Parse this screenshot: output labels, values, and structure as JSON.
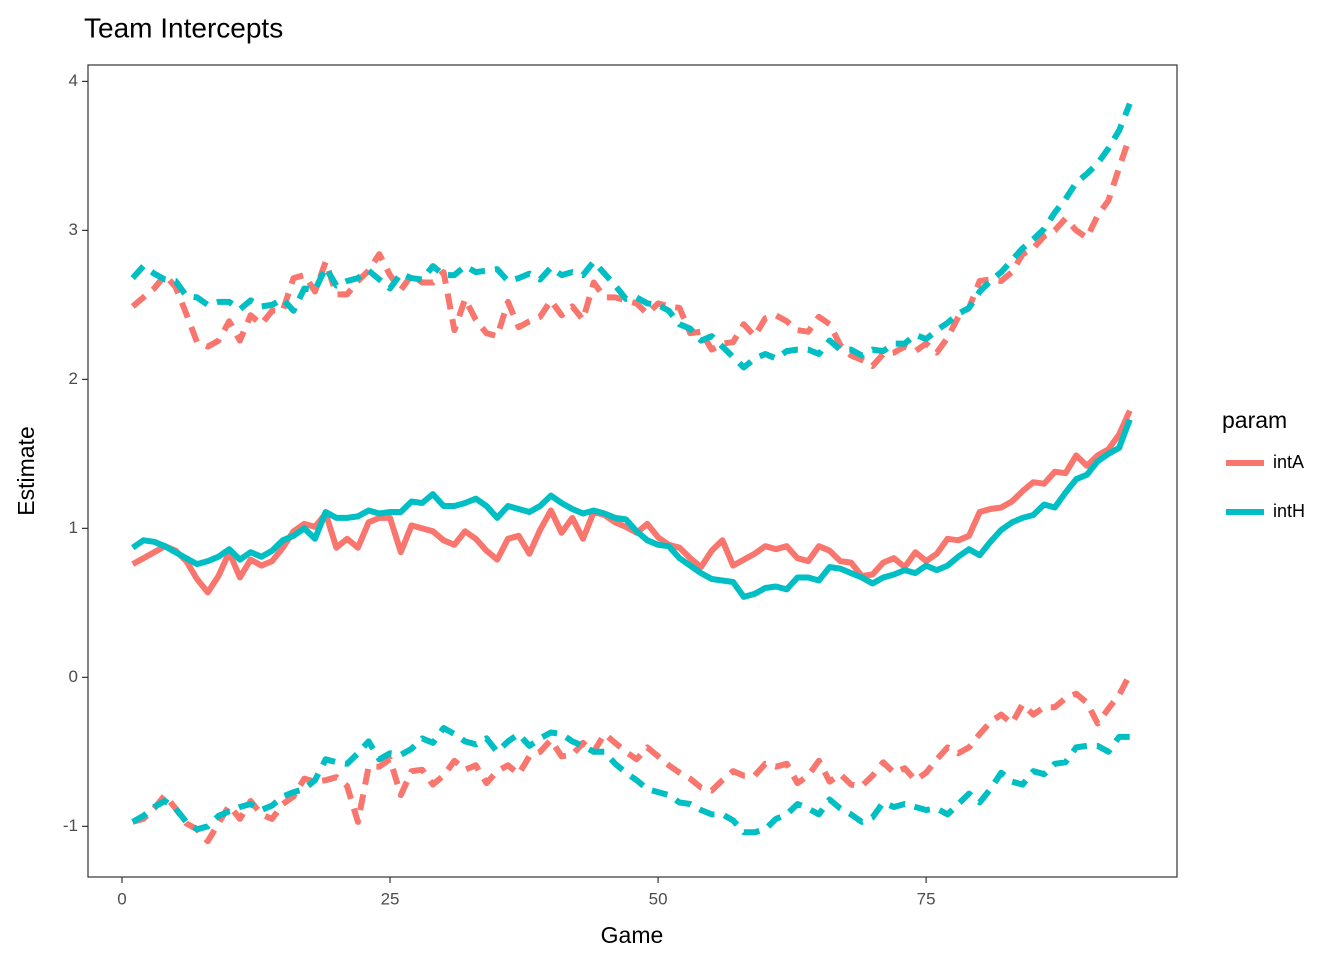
{
  "chart_data": {
    "type": "line",
    "title": "Team Intercepts",
    "x_label": "Game",
    "y_label": "Estimate",
    "legend_title": "param",
    "legend_position": "right",
    "x": [
      1,
      2,
      3,
      4,
      5,
      6,
      7,
      8,
      9,
      10,
      11,
      12,
      13,
      14,
      15,
      16,
      17,
      18,
      19,
      20,
      21,
      22,
      23,
      24,
      25,
      26,
      27,
      28,
      29,
      30,
      31,
      32,
      33,
      34,
      35,
      36,
      37,
      38,
      39,
      40,
      41,
      42,
      43,
      44,
      45,
      46,
      47,
      48,
      49,
      50,
      51,
      52,
      53,
      54,
      55,
      56,
      57,
      58,
      59,
      60,
      61,
      62,
      63,
      64,
      65,
      66,
      67,
      68,
      69,
      70,
      71,
      72,
      73,
      74,
      75,
      76,
      77,
      78,
      79,
      80,
      81,
      82,
      83,
      84,
      85,
      86,
      87,
      88,
      89,
      90,
      91,
      92,
      93,
      94
    ],
    "xlim": [
      -3.17,
      98.4
    ],
    "xticks": [
      0,
      25,
      50,
      75
    ],
    "ylim": [
      -1.34,
      4.11
    ],
    "yticks": [
      -1,
      0,
      1,
      2,
      3,
      4
    ],
    "series": [
      {
        "name": "intA",
        "color": "#F8766D",
        "values": [
          0.76,
          0.8,
          0.84,
          0.88,
          0.85,
          0.78,
          0.66,
          0.57,
          0.68,
          0.84,
          0.67,
          0.79,
          0.75,
          0.78,
          0.87,
          0.98,
          1.03,
          1.01,
          1.1,
          0.87,
          0.93,
          0.87,
          1.04,
          1.07,
          1.07,
          0.84,
          1.02,
          1.0,
          0.98,
          0.92,
          0.89,
          0.98,
          0.93,
          0.85,
          0.79,
          0.93,
          0.95,
          0.83,
          0.99,
          1.12,
          0.97,
          1.07,
          0.93,
          1.11,
          1.09,
          1.04,
          1.01,
          0.97,
          1.03,
          0.94,
          0.89,
          0.87,
          0.8,
          0.74,
          0.85,
          0.92,
          0.75,
          0.79,
          0.83,
          0.88,
          0.86,
          0.88,
          0.8,
          0.78,
          0.88,
          0.85,
          0.78,
          0.77,
          0.68,
          0.69,
          0.77,
          0.8,
          0.74,
          0.84,
          0.78,
          0.83,
          0.93,
          0.92,
          0.95,
          1.11,
          1.13,
          1.14,
          1.18,
          1.25,
          1.31,
          1.3,
          1.38,
          1.37,
          1.49,
          1.42,
          1.49,
          1.53,
          1.63,
          1.79
        ],
        "upper": [
          2.49,
          2.55,
          2.61,
          2.7,
          2.62,
          2.44,
          2.25,
          2.22,
          2.26,
          2.39,
          2.26,
          2.43,
          2.37,
          2.46,
          2.46,
          2.68,
          2.7,
          2.59,
          2.79,
          2.57,
          2.57,
          2.66,
          2.73,
          2.84,
          2.7,
          2.6,
          2.7,
          2.65,
          2.65,
          2.72,
          2.33,
          2.54,
          2.4,
          2.31,
          2.29,
          2.52,
          2.35,
          2.39,
          2.42,
          2.53,
          2.43,
          2.49,
          2.4,
          2.65,
          2.55,
          2.55,
          2.53,
          2.51,
          2.44,
          2.51,
          2.49,
          2.48,
          2.31,
          2.32,
          2.2,
          2.24,
          2.25,
          2.37,
          2.29,
          2.41,
          2.43,
          2.39,
          2.33,
          2.32,
          2.42,
          2.37,
          2.23,
          2.16,
          2.13,
          2.09,
          2.17,
          2.18,
          2.22,
          2.19,
          2.24,
          2.18,
          2.28,
          2.42,
          2.48,
          2.66,
          2.67,
          2.66,
          2.72,
          2.84,
          2.88,
          2.96,
          3.0,
          3.08,
          3.0,
          2.95,
          3.1,
          3.2,
          3.42,
          3.63
        ],
        "lower": [
          -0.97,
          -0.95,
          -0.88,
          -0.79,
          -0.88,
          -0.98,
          -1.02,
          -1.1,
          -0.98,
          -0.86,
          -0.95,
          -0.83,
          -0.92,
          -0.95,
          -0.85,
          -0.8,
          -0.68,
          -0.7,
          -0.69,
          -0.67,
          -0.73,
          -0.97,
          -0.6,
          -0.6,
          -0.55,
          -0.79,
          -0.63,
          -0.62,
          -0.72,
          -0.66,
          -0.56,
          -0.62,
          -0.59,
          -0.71,
          -0.63,
          -0.59,
          -0.65,
          -0.53,
          -0.5,
          -0.42,
          -0.53,
          -0.52,
          -0.44,
          -0.5,
          -0.38,
          -0.44,
          -0.5,
          -0.55,
          -0.47,
          -0.53,
          -0.59,
          -0.64,
          -0.68,
          -0.74,
          -0.76,
          -0.69,
          -0.63,
          -0.66,
          -0.66,
          -0.58,
          -0.6,
          -0.58,
          -0.71,
          -0.66,
          -0.56,
          -0.7,
          -0.65,
          -0.72,
          -0.73,
          -0.66,
          -0.57,
          -0.64,
          -0.61,
          -0.69,
          -0.64,
          -0.55,
          -0.47,
          -0.51,
          -0.47,
          -0.38,
          -0.3,
          -0.25,
          -0.31,
          -0.18,
          -0.25,
          -0.2,
          -0.2,
          -0.14,
          -0.11,
          -0.17,
          -0.31,
          -0.21,
          -0.12,
          0.02
        ]
      },
      {
        "name": "intH",
        "color": "#00BFC4",
        "values": [
          0.87,
          0.92,
          0.91,
          0.88,
          0.84,
          0.8,
          0.76,
          0.78,
          0.81,
          0.86,
          0.79,
          0.84,
          0.81,
          0.85,
          0.92,
          0.95,
          1.0,
          0.93,
          1.11,
          1.07,
          1.07,
          1.08,
          1.12,
          1.1,
          1.11,
          1.11,
          1.18,
          1.17,
          1.23,
          1.15,
          1.15,
          1.17,
          1.2,
          1.15,
          1.07,
          1.15,
          1.13,
          1.11,
          1.15,
          1.22,
          1.17,
          1.13,
          1.1,
          1.12,
          1.1,
          1.07,
          1.06,
          0.98,
          0.92,
          0.89,
          0.88,
          0.8,
          0.75,
          0.7,
          0.66,
          0.65,
          0.64,
          0.54,
          0.56,
          0.6,
          0.61,
          0.59,
          0.67,
          0.67,
          0.65,
          0.74,
          0.73,
          0.7,
          0.67,
          0.63,
          0.67,
          0.69,
          0.72,
          0.7,
          0.75,
          0.72,
          0.75,
          0.81,
          0.86,
          0.82,
          0.91,
          0.99,
          1.04,
          1.07,
          1.09,
          1.16,
          1.14,
          1.24,
          1.33,
          1.36,
          1.45,
          1.5,
          1.54,
          1.73
        ],
        "upper": [
          2.68,
          2.76,
          2.71,
          2.67,
          2.66,
          2.56,
          2.55,
          2.5,
          2.52,
          2.52,
          2.47,
          2.53,
          2.49,
          2.5,
          2.54,
          2.46,
          2.61,
          2.6,
          2.75,
          2.63,
          2.66,
          2.68,
          2.73,
          2.67,
          2.61,
          2.71,
          2.68,
          2.67,
          2.76,
          2.7,
          2.7,
          2.76,
          2.72,
          2.73,
          2.74,
          2.66,
          2.68,
          2.71,
          2.67,
          2.75,
          2.7,
          2.72,
          2.7,
          2.79,
          2.71,
          2.63,
          2.54,
          2.55,
          2.51,
          2.5,
          2.46,
          2.37,
          2.34,
          2.26,
          2.29,
          2.22,
          2.15,
          2.08,
          2.14,
          2.17,
          2.14,
          2.19,
          2.2,
          2.2,
          2.17,
          2.26,
          2.2,
          2.2,
          2.16,
          2.2,
          2.19,
          2.24,
          2.24,
          2.3,
          2.27,
          2.33,
          2.38,
          2.44,
          2.48,
          2.59,
          2.66,
          2.72,
          2.8,
          2.88,
          2.94,
          3.01,
          3.12,
          3.21,
          3.32,
          3.38,
          3.45,
          3.55,
          3.67,
          3.85
        ],
        "lower": [
          -0.97,
          -0.93,
          -0.87,
          -0.83,
          -0.88,
          -0.97,
          -1.02,
          -1.0,
          -0.93,
          -0.9,
          -0.87,
          -0.85,
          -0.89,
          -0.86,
          -0.8,
          -0.77,
          -0.75,
          -0.69,
          -0.55,
          -0.57,
          -0.58,
          -0.51,
          -0.43,
          -0.55,
          -0.51,
          -0.52,
          -0.48,
          -0.41,
          -0.44,
          -0.34,
          -0.38,
          -0.43,
          -0.45,
          -0.41,
          -0.5,
          -0.43,
          -0.38,
          -0.46,
          -0.41,
          -0.37,
          -0.38,
          -0.43,
          -0.46,
          -0.5,
          -0.5,
          -0.58,
          -0.64,
          -0.69,
          -0.75,
          -0.77,
          -0.79,
          -0.84,
          -0.85,
          -0.89,
          -0.92,
          -0.92,
          -0.96,
          -1.04,
          -1.04,
          -1.02,
          -0.95,
          -0.92,
          -0.85,
          -0.88,
          -0.92,
          -0.82,
          -0.88,
          -0.92,
          -0.97,
          -0.94,
          -0.84,
          -0.87,
          -0.85,
          -0.87,
          -0.89,
          -0.88,
          -0.92,
          -0.85,
          -0.78,
          -0.84,
          -0.75,
          -0.64,
          -0.7,
          -0.72,
          -0.63,
          -0.65,
          -0.58,
          -0.57,
          -0.47,
          -0.46,
          -0.46,
          -0.5,
          -0.4,
          -0.4
        ]
      }
    ]
  }
}
